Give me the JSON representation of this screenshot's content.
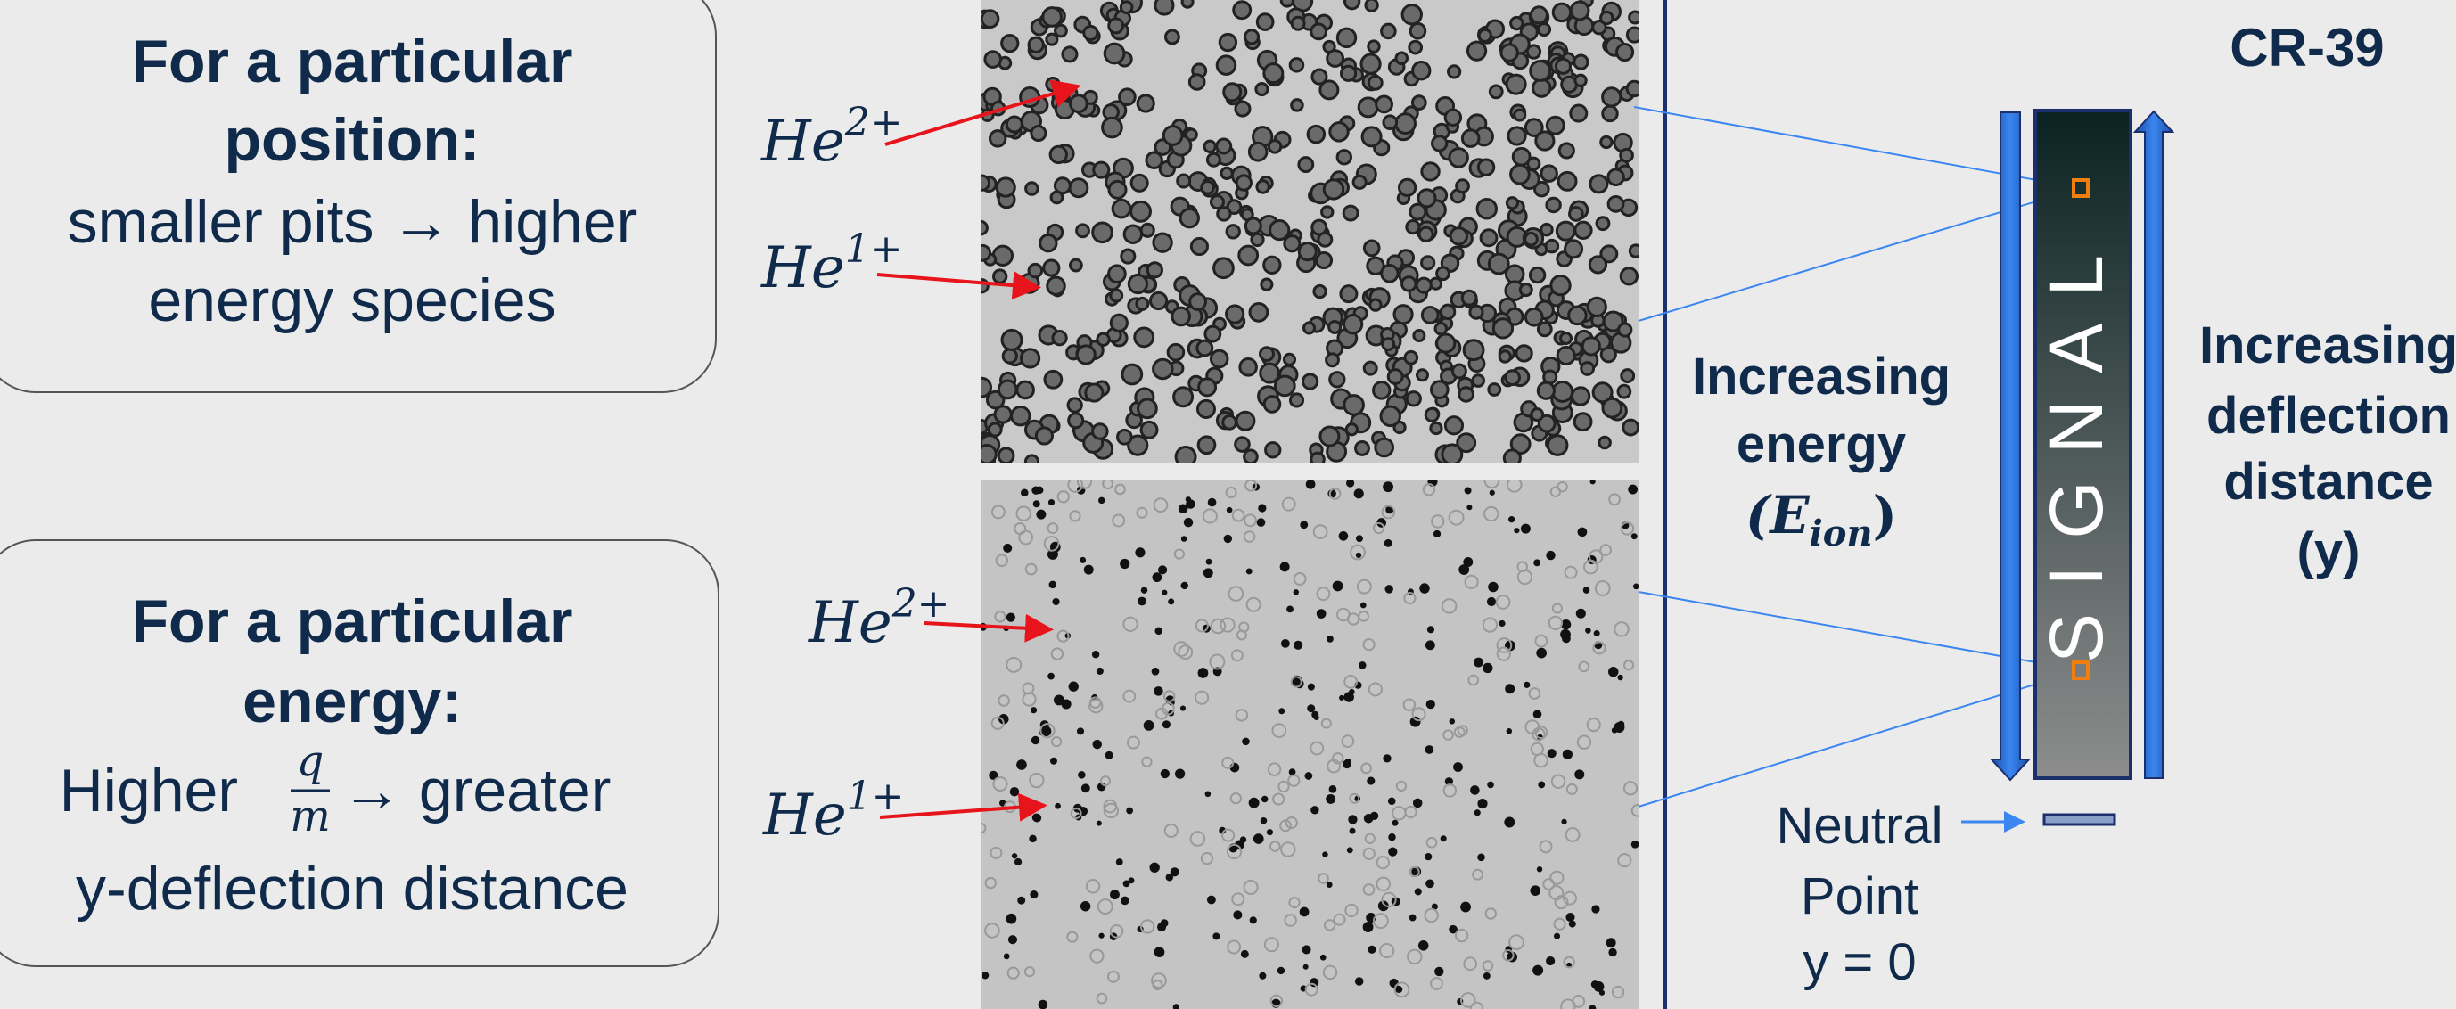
{
  "position_box": {
    "title_lines": [
      "For a particular",
      "position:"
    ],
    "lines": [
      "smaller pits → higher",
      "energy species"
    ]
  },
  "energy_box": {
    "title_lines": [
      "For a particular",
      "energy:"
    ],
    "prefix": "Higher",
    "numerator": "q",
    "denominator": "m",
    "suffix": "→ greater",
    "last_line": "y-deflection distance"
  },
  "he_labels": [
    {
      "base": "He",
      "charge": "2+"
    },
    {
      "base": "He",
      "charge": "1+"
    },
    {
      "base": "He",
      "charge": "2+"
    },
    {
      "base": "He",
      "charge": "1+"
    }
  ],
  "detector": {
    "title": "CR-39",
    "signal": "SIGNAL"
  },
  "energy_label": {
    "lines": [
      "Increasing",
      "energy"
    ],
    "symbol": "(E",
    "subscript": "ion",
    "close": ")"
  },
  "deflection_label": {
    "lines": [
      "Increasing",
      "deflection",
      "distance",
      "(y)"
    ]
  },
  "neutral_label": {
    "lines": [
      "Neutral",
      "Point",
      "y = 0"
    ]
  }
}
